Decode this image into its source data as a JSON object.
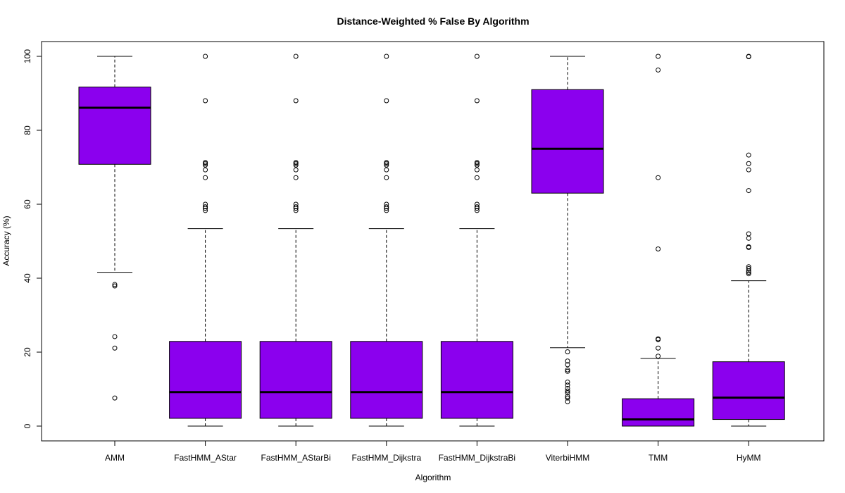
{
  "chart_data": {
    "type": "box",
    "title": "Distance-Weighted % False By Algorithm",
    "xlabel": "Algorithm",
    "ylabel": "Accuracy (%)",
    "ylim": [
      0,
      100
    ],
    "yticks": [
      0,
      20,
      40,
      60,
      80,
      100
    ],
    "box_color": "#8b00ee",
    "categories": [
      "AMM",
      "FastHMM_AStar",
      "FastHMM_AStarBi",
      "FastHMM_Dijkstra",
      "FastHMM_DijkstraBi",
      "ViterbiHMM",
      "TMM",
      "HyMM"
    ],
    "boxes": [
      {
        "whisker_low": 41.6,
        "q1": 70.8,
        "median": 86.1,
        "q3": 91.7,
        "whisker_high": 100,
        "outliers": [
          38.3,
          37.9,
          24.2,
          21.1,
          7.6
        ]
      },
      {
        "whisker_low": 0,
        "q1": 2.1,
        "median": 9.2,
        "q3": 22.9,
        "whisker_high": 53.4,
        "outliers": [
          100,
          88.0,
          71.3,
          71.0,
          70.6,
          69.3,
          67.2,
          60.0,
          59.3,
          58.9,
          58.3
        ]
      },
      {
        "whisker_low": 0,
        "q1": 2.1,
        "median": 9.2,
        "q3": 22.9,
        "whisker_high": 53.4,
        "outliers": [
          100,
          88.0,
          71.3,
          71.0,
          70.6,
          69.3,
          67.2,
          60.0,
          59.3,
          58.9,
          58.3
        ]
      },
      {
        "whisker_low": 0,
        "q1": 2.1,
        "median": 9.2,
        "q3": 22.9,
        "whisker_high": 53.4,
        "outliers": [
          100,
          88.0,
          71.3,
          71.0,
          70.6,
          69.3,
          67.2,
          60.0,
          59.3,
          58.9,
          58.3
        ]
      },
      {
        "whisker_low": 0,
        "q1": 2.1,
        "median": 9.2,
        "q3": 22.9,
        "whisker_high": 53.4,
        "outliers": [
          100,
          88.0,
          71.3,
          71.0,
          70.6,
          69.3,
          67.2,
          60.0,
          59.3,
          58.9,
          58.3
        ]
      },
      {
        "whisker_low": 21.2,
        "q1": 63.0,
        "median": 75.0,
        "q3": 91.0,
        "whisker_high": 100,
        "outliers": [
          20.1,
          17.6,
          16.6,
          15.2,
          14.8,
          11.9,
          11.1,
          10.2,
          9.5,
          9.0,
          8.0,
          7.6,
          6.6
        ]
      },
      {
        "whisker_low": 0,
        "q1": 0,
        "median": 1.8,
        "q3": 7.4,
        "whisker_high": 18.3,
        "outliers": [
          100,
          96.3,
          67.2,
          47.9,
          23.6,
          23.4,
          21.1,
          18.9
        ]
      },
      {
        "whisker_low": 0,
        "q1": 1.8,
        "median": 7.7,
        "q3": 17.4,
        "whisker_high": 39.3,
        "outliers": [
          100,
          99.9,
          73.3,
          71.0,
          69.3,
          63.7,
          52.0,
          50.8,
          48.5,
          48.3,
          43.1,
          42.6,
          42.0,
          41.6,
          41.2
        ]
      }
    ]
  }
}
